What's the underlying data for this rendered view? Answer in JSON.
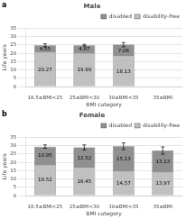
{
  "chart_data": [
    {
      "type": "bar",
      "title": "Male",
      "categories": [
        "18.5≤BMI<25",
        "25≤BMI<30",
        "30≤BMI<35",
        "35≤BMI"
      ],
      "series": [
        {
          "name": "disability-free",
          "color": "#c0c0c0",
          "values": [
            20.27,
            19.99,
            18.13,
            null
          ]
        },
        {
          "name": "disabled",
          "color": "#909090",
          "values": [
            4.55,
            4.87,
            7.06,
            null
          ]
        }
      ],
      "error_bars": {
        "center": [
          24.82,
          24.86,
          25.19,
          null
        ],
        "low": [
          0.9,
          0.5,
          1.3,
          null
        ],
        "high": [
          0.9,
          0.5,
          1.3,
          null
        ]
      },
      "stacked": true,
      "data_labels": true,
      "xlabel": "BMI category",
      "ylabel": "Life years",
      "ylim": [
        0,
        35
      ],
      "yticks": [
        0,
        5,
        10,
        15,
        20,
        25,
        30,
        35
      ],
      "grid": true,
      "legend": "upper right",
      "annotations": [
        "a"
      ]
    },
    {
      "type": "bar",
      "title": "Female",
      "categories": [
        "18.5≤BMI<25",
        "25≤BMI<30",
        "30≤BMI<35",
        "35≤BMI"
      ],
      "series": [
        {
          "name": "disability-free",
          "color": "#c0c0c0",
          "values": [
            18.52,
            16.45,
            14.57,
            13.97
          ]
        },
        {
          "name": "disabled",
          "color": "#909090",
          "values": [
            10.95,
            12.52,
            15.13,
            13.13
          ]
        }
      ],
      "error_bars": {
        "center": [
          29.47,
          28.97,
          29.7,
          27.1
        ],
        "low": [
          1.0,
          1.5,
          2.0,
          2.2
        ],
        "high": [
          1.0,
          1.5,
          2.0,
          2.2
        ]
      },
      "stacked": true,
      "data_labels": true,
      "xlabel": "BMI category",
      "ylabel": "Life years",
      "ylim": [
        0,
        35
      ],
      "yticks": [
        0,
        5,
        10,
        15,
        20,
        25,
        30,
        35
      ],
      "grid": true,
      "legend": "upper right",
      "annotations": [
        "b"
      ]
    }
  ]
}
